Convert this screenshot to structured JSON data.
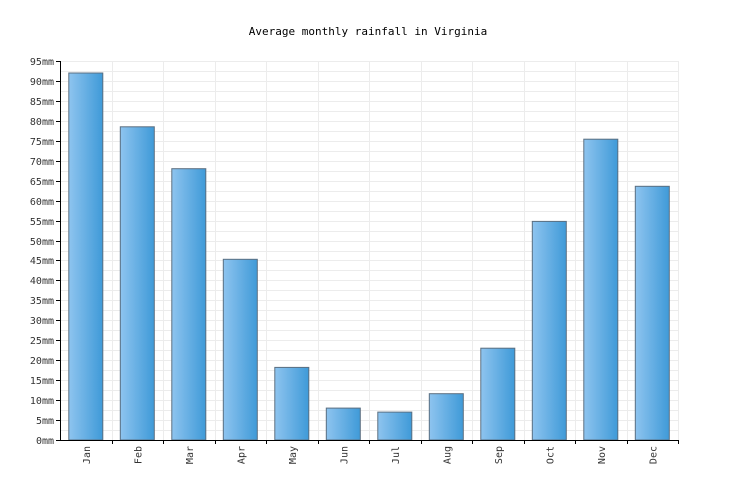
{
  "chart_data": {
    "type": "bar",
    "title": "Average monthly rainfall in Virginia",
    "xlabel": "",
    "ylabel": "",
    "categories": [
      "Jan",
      "Feb",
      "Mar",
      "Apr",
      "May",
      "Jun",
      "Jul",
      "Aug",
      "Sep",
      "Oct",
      "Nov",
      "Dec"
    ],
    "values": [
      92,
      78.5,
      68,
      45.3,
      18.2,
      8,
      7,
      11.6,
      23,
      54.8,
      75.4,
      63.6
    ],
    "ylim": [
      0,
      95
    ],
    "y_ticks": [
      0,
      5,
      10,
      15,
      20,
      25,
      30,
      35,
      40,
      45,
      50,
      55,
      60,
      65,
      70,
      75,
      80,
      85,
      90,
      95
    ],
    "y_tick_suffix": "mm",
    "grid": true,
    "legend": "none",
    "colors": {
      "bar_light": "#8ec4ef",
      "bar_dark": "#3f9ad8",
      "bar_border": "#5a6e80",
      "grid": "#ececec"
    }
  }
}
